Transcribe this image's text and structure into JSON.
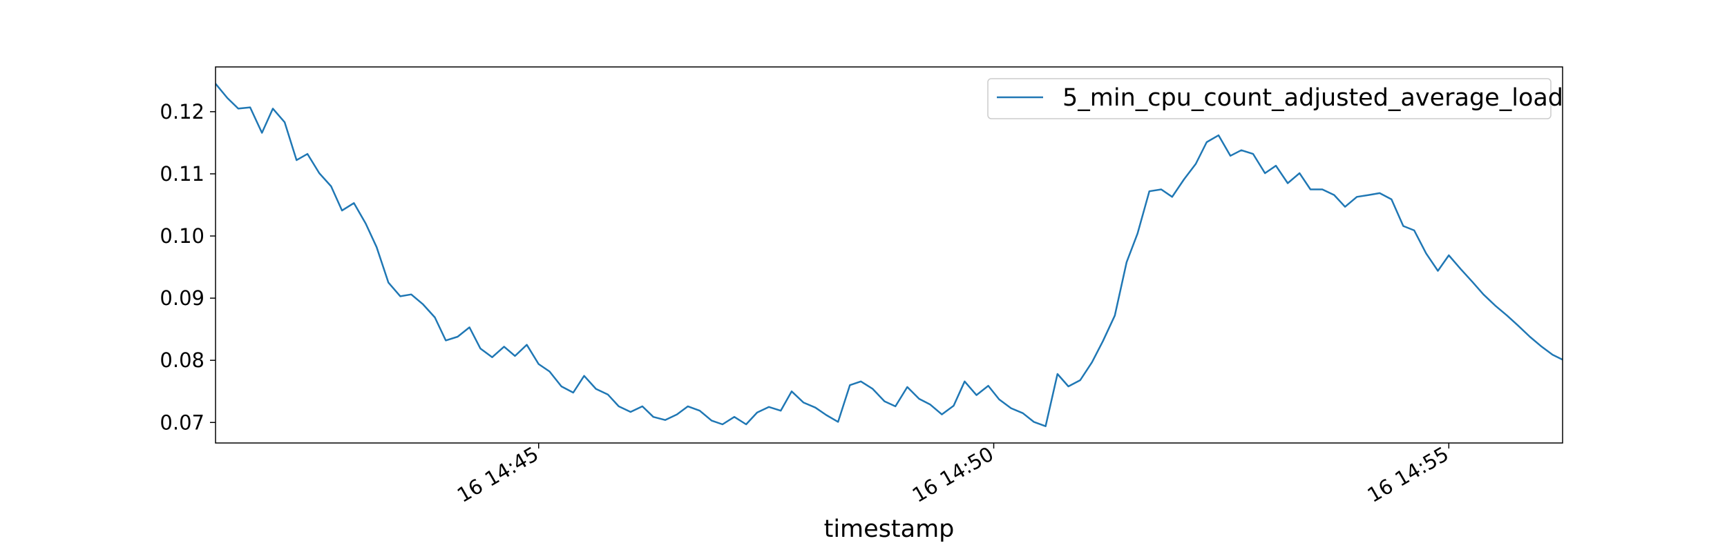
{
  "chart_data": {
    "type": "line",
    "title": "",
    "xlabel": "timestamp",
    "ylabel": "",
    "x_ticks": [
      "16 14:45",
      "16 14:50",
      "16 14:55"
    ],
    "y_ticks": [
      "0.07",
      "0.08",
      "0.09",
      "0.10",
      "0.11",
      "0.12"
    ],
    "x_tick_minutes": [
      45,
      50,
      55
    ],
    "xlim_minutes": [
      41.45,
      56.25
    ],
    "ylim": [
      0.0667,
      0.1272
    ],
    "grid": false,
    "legend_position": "top-right",
    "colors": {
      "line": "#1f77b4",
      "axes": "#000000",
      "legend_border": "#cccccc"
    },
    "series": [
      {
        "name": "5_min_cpu_count_adjusted_average_load",
        "x_minutes": [
          41.45,
          41.58,
          41.7,
          41.83,
          41.96,
          42.08,
          42.21,
          42.34,
          42.46,
          42.59,
          42.72,
          42.84,
          42.97,
          43.1,
          43.22,
          43.35,
          43.48,
          43.6,
          43.73,
          43.86,
          43.98,
          44.11,
          44.24,
          44.36,
          44.49,
          44.62,
          44.74,
          44.87,
          45.0,
          45.12,
          45.25,
          45.38,
          45.5,
          45.63,
          45.76,
          45.88,
          46.01,
          46.14,
          46.26,
          46.39,
          46.52,
          46.64,
          46.77,
          46.9,
          47.02,
          47.15,
          47.28,
          47.4,
          47.53,
          47.66,
          47.78,
          47.91,
          48.04,
          48.16,
          48.29,
          48.42,
          48.54,
          48.67,
          48.8,
          48.92,
          49.05,
          49.18,
          49.3,
          49.43,
          49.56,
          49.68,
          49.81,
          49.94,
          50.06,
          50.19,
          50.32,
          50.44,
          50.57,
          50.7,
          50.82,
          50.95,
          51.08,
          51.2,
          51.33,
          51.46,
          51.58,
          51.71,
          51.84,
          51.96,
          52.09,
          52.22,
          52.34,
          52.47,
          52.6,
          52.72,
          52.85,
          52.98,
          53.1,
          53.23,
          53.36,
          53.48,
          53.61,
          53.74,
          53.86,
          53.99,
          54.12,
          54.24,
          54.37,
          54.5,
          54.62,
          54.75,
          54.88,
          55.0,
          55.13,
          55.26,
          55.38,
          55.51,
          55.64,
          55.76,
          55.89,
          56.02,
          56.14,
          56.25
        ],
        "values": [
          0.1245,
          0.1222,
          0.1205,
          0.1207,
          0.1166,
          0.1205,
          0.1183,
          0.1122,
          0.1132,
          0.1101,
          0.108,
          0.1041,
          0.1053,
          0.102,
          0.0982,
          0.0925,
          0.0903,
          0.0906,
          0.089,
          0.0869,
          0.0832,
          0.0838,
          0.0853,
          0.0819,
          0.0805,
          0.0822,
          0.0807,
          0.0825,
          0.0794,
          0.0782,
          0.0758,
          0.0748,
          0.0775,
          0.0754,
          0.0745,
          0.0726,
          0.0717,
          0.0726,
          0.0709,
          0.0704,
          0.0713,
          0.0726,
          0.0719,
          0.0703,
          0.0697,
          0.0709,
          0.0697,
          0.0716,
          0.0725,
          0.0719,
          0.075,
          0.0732,
          0.0724,
          0.0712,
          0.0701,
          0.076,
          0.0766,
          0.0754,
          0.0734,
          0.0726,
          0.0757,
          0.0738,
          0.0729,
          0.0713,
          0.0727,
          0.0766,
          0.0744,
          0.0759,
          0.0737,
          0.0723,
          0.0715,
          0.0701,
          0.0694,
          0.0778,
          0.0758,
          0.0768,
          0.0797,
          0.0831,
          0.0872,
          0.0958,
          0.1004,
          0.1072,
          0.1075,
          0.1063,
          0.1091,
          0.1116,
          0.1151,
          0.1162,
          0.1129,
          0.1138,
          0.1132,
          0.1101,
          0.1113,
          0.1085,
          0.1101,
          0.1075,
          0.1075,
          0.1066,
          0.1047,
          0.1063,
          0.1066,
          0.1069,
          0.1059,
          0.1016,
          0.1009,
          0.0972,
          0.0944,
          0.0969,
          0.0947,
          0.0926,
          0.0906,
          0.0888,
          0.0872,
          0.0856,
          0.0838,
          0.0822,
          0.0809,
          0.0801
        ]
      }
    ]
  }
}
